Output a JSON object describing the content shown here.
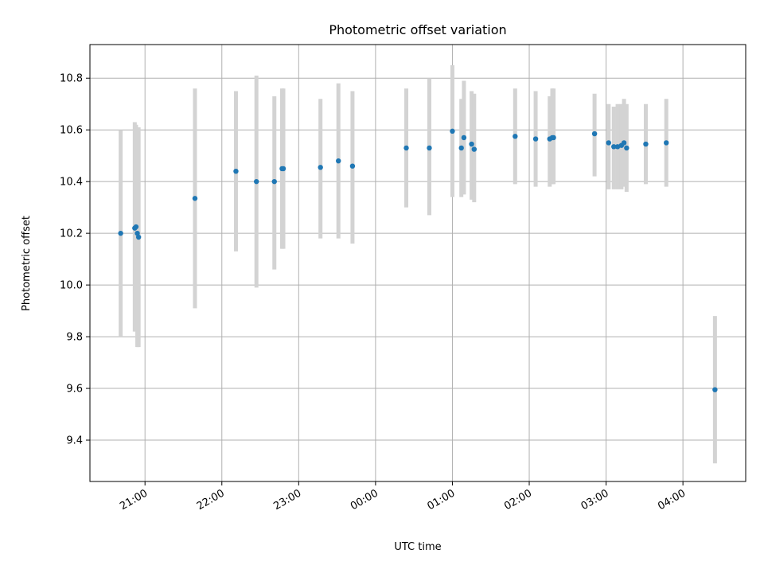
{
  "chart_data": {
    "type": "scatter",
    "title": "Photometric offset variation",
    "xlabel": "UTC time",
    "ylabel": "Photometric offset",
    "grid": true,
    "colors": {
      "point": "#1f77b4",
      "errorbar": "#d3d3d3",
      "grid": "#b0b0b0"
    },
    "xlim": [
      "20:17",
      "04:49"
    ],
    "ylim": [
      9.24,
      10.93
    ],
    "x_ticks": [
      "21:00",
      "22:00",
      "23:00",
      "00:00",
      "01:00",
      "02:00",
      "03:00",
      "04:00"
    ],
    "y_ticks": [
      "9.4",
      "9.6",
      "9.8",
      "10.0",
      "10.2",
      "10.4",
      "10.6",
      "10.8"
    ],
    "series": [
      {
        "x": [
          "20:41",
          "20:52",
          "20:53",
          "20:54",
          "20:55",
          "21:39",
          "22:11",
          "22:27",
          "22:41",
          "22:47",
          "22:48",
          "23:17",
          "23:31",
          "23:42",
          "00:24",
          "00:42",
          "01:00",
          "01:07",
          "01:09",
          "01:15",
          "01:17",
          "01:49",
          "02:05",
          "02:16",
          "02:18",
          "02:19",
          "02:51",
          "03:02",
          "03:06",
          "03:09",
          "03:12",
          "03:14",
          "03:16",
          "03:31",
          "03:47",
          "04:25"
        ],
        "y": [
          10.2,
          10.22,
          10.225,
          10.2,
          10.185,
          10.335,
          10.44,
          10.4,
          10.4,
          10.45,
          10.45,
          10.455,
          10.48,
          10.46,
          10.53,
          10.53,
          10.595,
          10.53,
          10.57,
          10.545,
          10.525,
          10.575,
          10.565,
          10.565,
          10.57,
          10.57,
          10.585,
          10.55,
          10.535,
          10.535,
          10.54,
          10.55,
          10.53,
          10.545,
          10.55,
          9.595
        ],
        "err_low": [
          9.8,
          9.82,
          9.82,
          9.76,
          9.76,
          9.91,
          10.13,
          9.99,
          10.06,
          10.14,
          10.14,
          10.18,
          10.18,
          10.16,
          10.3,
          10.27,
          10.34,
          10.34,
          10.35,
          10.33,
          10.32,
          10.39,
          10.38,
          10.38,
          10.39,
          10.39,
          10.42,
          10.37,
          10.37,
          10.37,
          10.37,
          10.38,
          10.36,
          10.39,
          10.38,
          9.31
        ],
        "err_high": [
          10.6,
          10.63,
          10.62,
          10.61,
          10.61,
          10.76,
          10.75,
          10.81,
          10.73,
          10.76,
          10.76,
          10.72,
          10.78,
          10.75,
          10.76,
          10.8,
          10.85,
          10.72,
          10.79,
          10.75,
          10.74,
          10.76,
          10.75,
          10.73,
          10.76,
          10.76,
          10.74,
          10.7,
          10.69,
          10.7,
          10.7,
          10.72,
          10.7,
          10.7,
          10.72,
          9.88
        ]
      }
    ]
  }
}
